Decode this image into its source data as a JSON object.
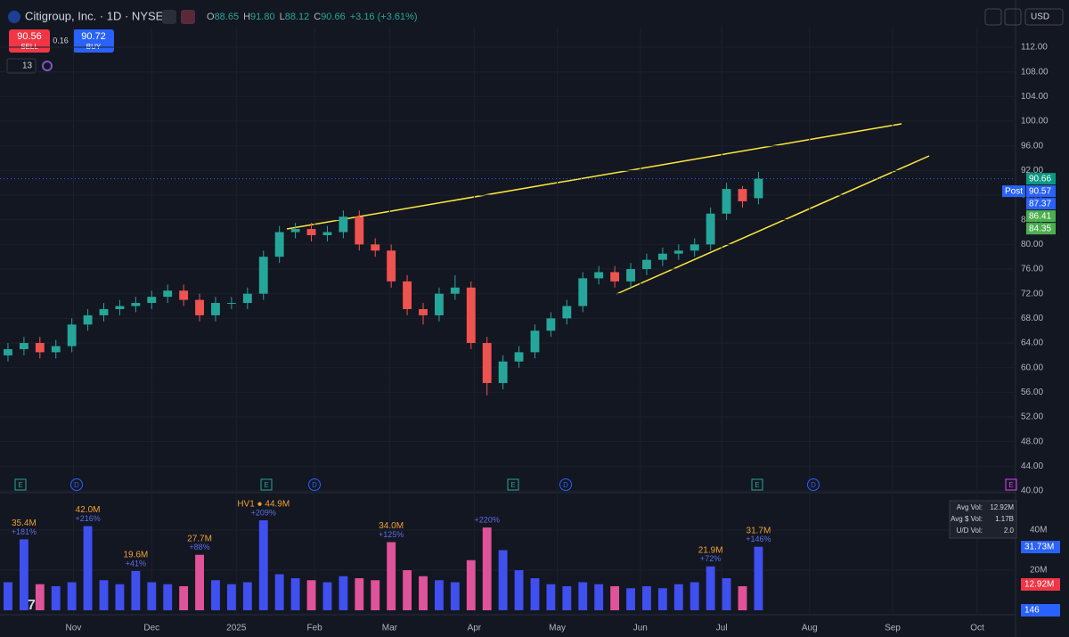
{
  "header": {
    "title": "Citigroup, Inc. · 1D · NYSE",
    "ohlc": [
      {
        "key": "O",
        "value": "88.65"
      },
      {
        "key": "H",
        "value": "91.80"
      },
      {
        "key": "L",
        "value": "88.12"
      },
      {
        "key": "C",
        "value": "90.66"
      }
    ],
    "change": "+3.16 (+3.61%)",
    "sell_price": "90.56",
    "sell": "SELL",
    "spread": "0.16",
    "buy_price": "90.72",
    "buy": "BUY",
    "interval": "13",
    "currency": "USD"
  },
  "chart_data": {
    "type": "candlestick",
    "categories": [
      null,
      null,
      null,
      null,
      null,
      null,
      null,
      null,
      null,
      null,
      null,
      null,
      null,
      null,
      null,
      null,
      null,
      null,
      null,
      null,
      null,
      null,
      null,
      null,
      null,
      null,
      null,
      null,
      null,
      null,
      null,
      null,
      null,
      null,
      null,
      null,
      null,
      null,
      null,
      null,
      null,
      null,
      null,
      null,
      null,
      null,
      null,
      null
    ],
    "open": [
      62,
      63,
      64,
      62.5,
      63.5,
      67,
      68.5,
      69.5,
      70,
      70.5,
      71.5,
      72.5,
      71,
      68.5,
      70.5,
      70.5,
      72,
      78,
      82,
      82.5,
      81.5,
      82,
      84.5,
      80,
      79,
      74,
      69.5,
      68.5,
      72,
      73,
      64,
      57.5,
      61,
      62.5,
      66,
      68,
      70,
      74.5,
      75.5,
      74,
      76,
      77.5,
      78.5,
      79,
      80,
      85,
      89,
      87.5
    ],
    "high": [
      64,
      65,
      65,
      64.5,
      68,
      69.5,
      70.5,
      71,
      71.5,
      72.5,
      73.5,
      73.5,
      72,
      71.5,
      71.5,
      73,
      79,
      83,
      83.5,
      83.5,
      83,
      85.5,
      85.5,
      81,
      80,
      75,
      70.5,
      73,
      75,
      74,
      65,
      62,
      63.5,
      67,
      69,
      71,
      75.5,
      76.5,
      76.5,
      77,
      78.5,
      79.5,
      80,
      81,
      86,
      90,
      89.5,
      91.8
    ],
    "low": [
      61,
      62,
      61.5,
      61.5,
      62.5,
      66,
      67.5,
      68.5,
      69,
      69.5,
      70.5,
      70,
      67.5,
      67.5,
      69.5,
      69.5,
      71,
      77,
      81,
      80.5,
      80.5,
      81,
      79,
      78,
      73,
      68.5,
      67,
      67.5,
      71,
      63,
      55.5,
      56.5,
      60,
      61.5,
      65,
      67,
      69,
      73.5,
      73,
      73,
      75,
      76.5,
      77.5,
      78,
      79,
      84,
      86,
      86.5
    ],
    "close": [
      63,
      64,
      62.5,
      63.5,
      67,
      68.5,
      69.5,
      70,
      70.5,
      71.5,
      72.5,
      71,
      68.5,
      70.5,
      70.5,
      72,
      78,
      82,
      82.5,
      81.5,
      82,
      84.5,
      80,
      79,
      74,
      69.5,
      68.5,
      72,
      73,
      64,
      57.5,
      61,
      62.5,
      66,
      68,
      70,
      74.5,
      75.5,
      74,
      76,
      77.5,
      78.5,
      79,
      80,
      85,
      89,
      87,
      90.66
    ],
    "up_color": "#26a69a",
    "down_color": "#ef5350",
    "ylim": [
      40,
      115.33
    ],
    "yticks": [
      {
        "value": 40,
        "label": "40.00"
      },
      {
        "value": 44,
        "label": "44.00"
      },
      {
        "value": 48,
        "label": "48.00"
      },
      {
        "value": 52,
        "label": "52.00"
      },
      {
        "value": 56,
        "label": "56.00"
      },
      {
        "value": 60,
        "label": "60.00"
      },
      {
        "value": 64,
        "label": "64.00"
      },
      {
        "value": 68,
        "label": "68.00"
      },
      {
        "value": 72,
        "label": "72.00"
      },
      {
        "value": 76,
        "label": "76.00"
      },
      {
        "value": 80,
        "label": "80.00"
      },
      {
        "value": 84,
        "label": "84.00"
      },
      {
        "value": 88,
        "label": "88.00"
      },
      {
        "value": 92,
        "label": "92.00"
      },
      {
        "value": 96,
        "label": "96.00"
      },
      {
        "value": 100,
        "label": "100.00"
      },
      {
        "value": 104,
        "label": "104.00"
      },
      {
        "value": 108,
        "label": "108.00"
      },
      {
        "value": 112,
        "label": "112.00"
      }
    ],
    "xlim": [
      -0.5,
      63.1
    ],
    "xticks": [
      {
        "value": 4.1,
        "label": "Nov"
      },
      {
        "value": 9,
        "label": "Dec"
      },
      {
        "value": 14.3,
        "label": "2025"
      },
      {
        "value": 19.2,
        "label": "Feb"
      },
      {
        "value": 23.9,
        "label": "Mar"
      },
      {
        "value": 29.2,
        "label": "Apr"
      },
      {
        "value": 34.4,
        "label": "May"
      },
      {
        "value": 39.6,
        "label": "Jun"
      },
      {
        "value": 44.7,
        "label": "Jul"
      },
      {
        "value": 50.2,
        "label": "Aug"
      },
      {
        "value": 55.4,
        "label": "Sep"
      },
      {
        "value": 60.7,
        "label": "Oct"
      }
    ],
    "price_labels": [
      {
        "value": 90.66,
        "label": "90.66",
        "color": "#089981"
      },
      {
        "value": 90.57,
        "label": "90.57",
        "tag": "Post",
        "color": "#2962ff"
      },
      {
        "value": 87.37,
        "label": "87.37",
        "color": "#2962ff"
      },
      {
        "value": 86.41,
        "label": "86.41",
        "color": "#4caf50"
      },
      {
        "value": 84.35,
        "label": "84.35",
        "color": "#4caf50"
      }
    ],
    "events": [
      "E",
      "D",
      "E",
      "D",
      "E",
      "D",
      "E",
      "D",
      "E"
    ],
    "volume": {
      "values": [
        14,
        35.4,
        13,
        12,
        14,
        42.0,
        15,
        13,
        19.6,
        14,
        13,
        12,
        27.7,
        15,
        13,
        14,
        44.9,
        18,
        16,
        15,
        14,
        17,
        16,
        15,
        34.0,
        20,
        17,
        15,
        14,
        25,
        41.3,
        30,
        20,
        16,
        13,
        12,
        14,
        13,
        12,
        11,
        12,
        11,
        13,
        14,
        21.9,
        16,
        12,
        31.7
      ],
      "value_labels": [
        null,
        "35.4M",
        null,
        null,
        null,
        "42.0M",
        null,
        null,
        "19.6M",
        null,
        null,
        null,
        "27.7M",
        null,
        null,
        null,
        "HV1 ● 44.9M",
        null,
        null,
        null,
        null,
        null,
        null,
        null,
        "34.0M",
        null,
        null,
        null,
        null,
        null,
        null,
        null,
        null,
        null,
        null,
        null,
        null,
        null,
        null,
        null,
        null,
        null,
        null,
        null,
        "21.9M",
        null,
        null,
        "31.7M"
      ],
      "change_labels": [
        null,
        "+181%",
        null,
        null,
        null,
        "+216%",
        null,
        null,
        "+41%",
        null,
        null,
        null,
        "+88%",
        null,
        null,
        null,
        "+209%",
        null,
        null,
        null,
        null,
        null,
        null,
        null,
        "+125%",
        null,
        null,
        null,
        null,
        null,
        "+220%",
        null,
        null,
        null,
        null,
        null,
        null,
        null,
        null,
        null,
        null,
        null,
        null,
        null,
        "+72%",
        null,
        null,
        "+146%"
      ],
      "up_color": "#3f4ff0",
      "down_color": "#e0529a",
      "ylim": [
        0,
        57.8
      ],
      "yticks": [
        {
          "value": 20,
          "label": "20M"
        },
        {
          "value": 40,
          "label": "40M"
        }
      ],
      "axis_labels": [
        {
          "label": "31.73M",
          "color": "#2962ff"
        },
        {
          "label": "12.92M",
          "color": "#f23645"
        },
        {
          "label": "146",
          "color": "#2962ff"
        }
      ],
      "stats": [
        {
          "name": "Avg Vol:",
          "value": "12.92M"
        },
        {
          "name": "Avg $ Vol:",
          "value": "1.17B"
        },
        {
          "name": "U/D Vol:",
          "value": "2.0"
        }
      ]
    }
  }
}
